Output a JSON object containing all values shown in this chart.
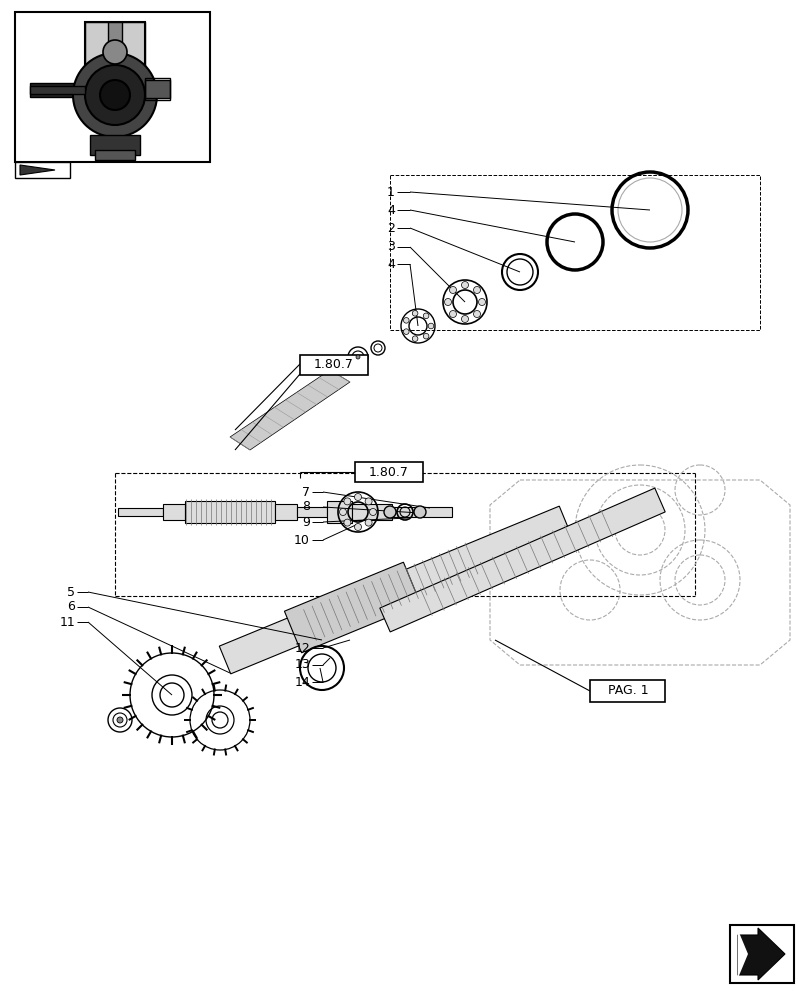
{
  "bg_color": "#ffffff",
  "lc": "#000000",
  "gray1": "#bbbbbb",
  "gray2": "#888888",
  "gray3": "#444444",
  "ref_label": "1.80.7",
  "page_label": "PAG. 1",
  "top_labels": [
    [
      "1",
      390,
      195
    ],
    [
      "4",
      390,
      215
    ],
    [
      "2",
      390,
      232
    ],
    [
      "3",
      390,
      248
    ],
    [
      "4",
      390,
      265
    ]
  ],
  "bot_labels": [
    [
      "7",
      310,
      497
    ],
    [
      "8",
      310,
      513
    ],
    [
      "9",
      310,
      529
    ],
    [
      "10",
      310,
      548
    ],
    [
      "5",
      75,
      600
    ],
    [
      "6",
      75,
      618
    ],
    [
      "11",
      75,
      637
    ],
    [
      "12",
      310,
      660
    ],
    [
      "13",
      310,
      678
    ],
    [
      "14",
      310,
      695
    ]
  ]
}
